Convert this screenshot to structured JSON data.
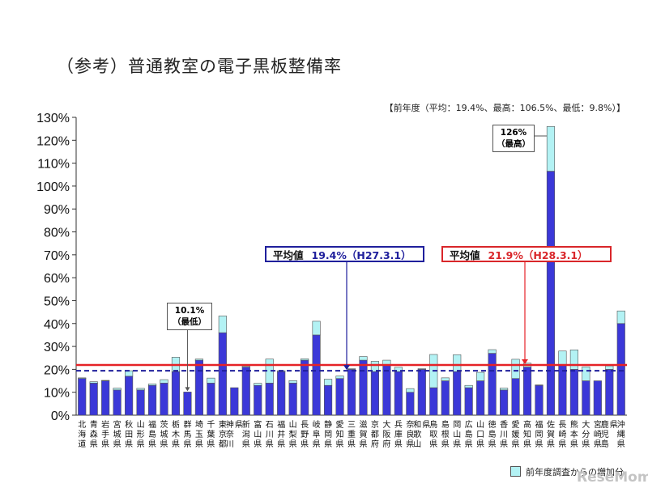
{
  "title": "（参考）普通教室の電子黒板整備率",
  "previous_year_note": "【前年度（平均：19.4%、最高：106.5%、最低：9.8%）】",
  "average_previous": {
    "label": "平均値",
    "value": "19.4%（H27.3.1）"
  },
  "average_current": {
    "label": "平均値",
    "value": "21.9%（H28.3.1）"
  },
  "callout_min": {
    "value": "10.1%",
    "note": "（最低）"
  },
  "callout_max": {
    "value": "126%",
    "note": "（最高）"
  },
  "legend": {
    "increase_label": "前年度調査からの増加分"
  },
  "watermark": "ReseMom",
  "colors": {
    "base_bar": "#3b38d8",
    "increase_bar": "#b3f2f4",
    "avg_prev_line": "#1f1f9c",
    "avg_curr_line": "#e52227"
  },
  "chart_data": {
    "type": "bar",
    "stacked": true,
    "categories": [
      "北海道",
      "青森県",
      "岩手県",
      "宮城県",
      "秋田県",
      "山形県",
      "福島県",
      "茨城県",
      "栃木県",
      "群馬県",
      "埼玉県",
      "千葉県",
      "東京都",
      "神奈川県",
      "新潟県",
      "富山県",
      "石川県",
      "福井県",
      "山梨県",
      "長野県",
      "岐阜県",
      "静岡県",
      "愛知県",
      "三重県",
      "滋賀県",
      "京都府",
      "大阪府",
      "兵庫県",
      "奈良県",
      "和歌山県",
      "鳥取県",
      "島根県",
      "岡山県",
      "広島県",
      "山口県",
      "徳島県",
      "香川県",
      "愛媛県",
      "高知県",
      "福岡県",
      "佐賀県",
      "長崎県",
      "熊本県",
      "大分県",
      "宮崎県",
      "鹿児島県",
      "沖縄県"
    ],
    "series": [
      {
        "name": "",
        "values": [
          16,
          14,
          15,
          11,
          17,
          11,
          13,
          14,
          19,
          10.1,
          24,
          14,
          36,
          12,
          21,
          13,
          14,
          19,
          14,
          24,
          35,
          13,
          16,
          20,
          24,
          19,
          22,
          19,
          10,
          20,
          12,
          15,
          19,
          12,
          15,
          27,
          11,
          16,
          21,
          13,
          106.5,
          22,
          20,
          15,
          15,
          20,
          40
        ]
      },
      {
        "name": "前年度調査からの増加分",
        "values": [
          0.3,
          0.6,
          0.2,
          0.8,
          2.4,
          0.7,
          0.6,
          1.5,
          6.3,
          0,
          0.5,
          2.2,
          7.3,
          0,
          0.4,
          0.9,
          10.5,
          0.4,
          1.1,
          0.6,
          6,
          2.7,
          1.1,
          0.3,
          1.6,
          4.5,
          2,
          1.9,
          1.6,
          0.3,
          14.5,
          1.3,
          7.4,
          1,
          3.7,
          1.6,
          0.8,
          8.4,
          1.7,
          0.2,
          19.5,
          6,
          8.5,
          6.1,
          0,
          1.5,
          5.5
        ]
      }
    ],
    "ylim": [
      0,
      130
    ],
    "yticks": [
      "0%",
      "10%",
      "20%",
      "30%",
      "40%",
      "50%",
      "60%",
      "70%",
      "80%",
      "90%",
      "100%",
      "110%",
      "120%",
      "130%"
    ],
    "reference_lines": [
      {
        "value": 19.4,
        "style": "dashed"
      },
      {
        "value": 21.9,
        "style": "solid"
      }
    ],
    "grid": false
  }
}
